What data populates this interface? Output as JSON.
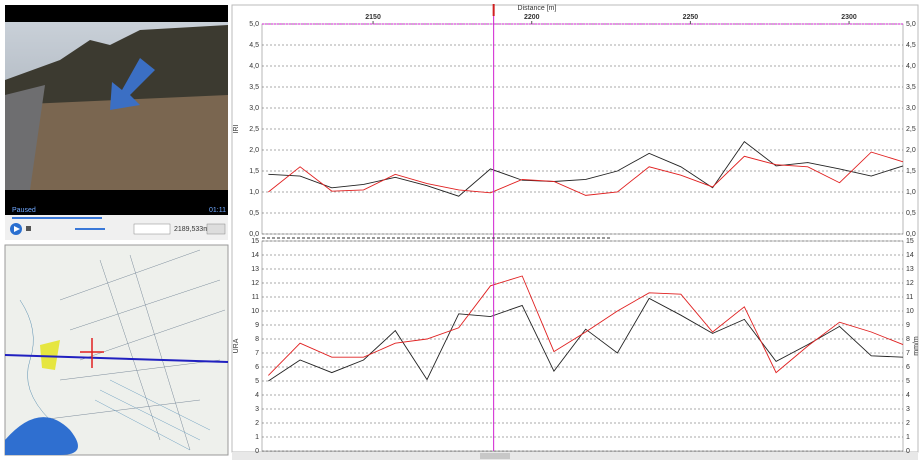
{
  "video": {
    "status": "Paused",
    "time": "01:11",
    "position": "2189,533m"
  },
  "chart_data": [
    {
      "type": "line",
      "x_label": "Distance [m]",
      "y_label": "IRI",
      "x": [
        2117,
        2127,
        2137,
        2147,
        2157,
        2167,
        2177,
        2187,
        2197,
        2207,
        2217,
        2227,
        2237,
        2247,
        2257,
        2267,
        2277,
        2287,
        2297,
        2307,
        2317
      ],
      "xlim": [
        2115,
        2317
      ],
      "xticks": [
        2150,
        2200,
        2250,
        2300
      ],
      "cursor": 2188,
      "ylim": [
        0,
        5
      ],
      "yticks": [
        {
          "value": 0,
          "label": "0,0"
        },
        {
          "value": 0.5,
          "label": "0,5"
        },
        {
          "value": 1,
          "label": "1,0"
        },
        {
          "value": 1.5,
          "label": "1,5"
        },
        {
          "value": 2,
          "label": "2,0"
        },
        {
          "value": 2.5,
          "label": "2,5"
        },
        {
          "value": 3,
          "label": "3,0"
        },
        {
          "value": 3.5,
          "label": "3,5"
        },
        {
          "value": 4,
          "label": "4,0"
        },
        {
          "value": 4.5,
          "label": "4,5"
        },
        {
          "value": 5,
          "label": "5,0"
        }
      ],
      "grid": true,
      "series": [
        {
          "color": "#222222",
          "values": [
            1.42,
            1.38,
            1.1,
            1.18,
            1.35,
            1.15,
            0.9,
            1.55,
            1.28,
            1.25,
            1.3,
            1.5,
            1.92,
            1.6,
            1.1,
            2.2,
            1.62,
            1.7,
            1.55,
            1.38,
            1.62
          ]
        },
        {
          "color": "#e02020",
          "values": [
            1.0,
            1.6,
            1.02,
            1.05,
            1.42,
            1.2,
            1.05,
            0.98,
            1.3,
            1.25,
            0.92,
            1.0,
            1.6,
            1.4,
            1.12,
            1.85,
            1.65,
            1.6,
            1.22,
            1.95,
            1.72
          ]
        }
      ]
    },
    {
      "type": "line",
      "y_label": "URA",
      "y2_label": "mm/m",
      "x": [
        2117,
        2127,
        2137,
        2147,
        2157,
        2167,
        2177,
        2187,
        2197,
        2207,
        2217,
        2227,
        2237,
        2247,
        2257,
        2267,
        2277,
        2287,
        2297,
        2307,
        2317
      ],
      "xlim": [
        2115,
        2317
      ],
      "cursor": 2188,
      "ylim": [
        0,
        15
      ],
      "yticks": [
        0,
        1,
        2,
        3,
        4,
        5,
        6,
        7,
        8,
        9,
        10,
        11,
        12,
        13,
        14,
        15
      ],
      "grid": true,
      "series": [
        {
          "color": "#222222",
          "values": [
            5.0,
            6.5,
            5.6,
            6.5,
            8.6,
            5.1,
            9.8,
            9.6,
            10.4,
            5.7,
            8.7,
            7.0,
            10.9,
            9.7,
            8.4,
            9.4,
            6.4,
            7.6,
            8.9,
            6.8,
            6.7
          ]
        },
        {
          "color": "#e02020",
          "values": [
            5.4,
            7.7,
            6.7,
            6.7,
            7.7,
            8.0,
            8.8,
            11.8,
            12.5,
            7.1,
            8.5,
            10.0,
            11.3,
            11.2,
            8.5,
            10.3,
            5.6,
            7.5,
            9.2,
            8.5,
            7.6
          ]
        }
      ]
    }
  ]
}
